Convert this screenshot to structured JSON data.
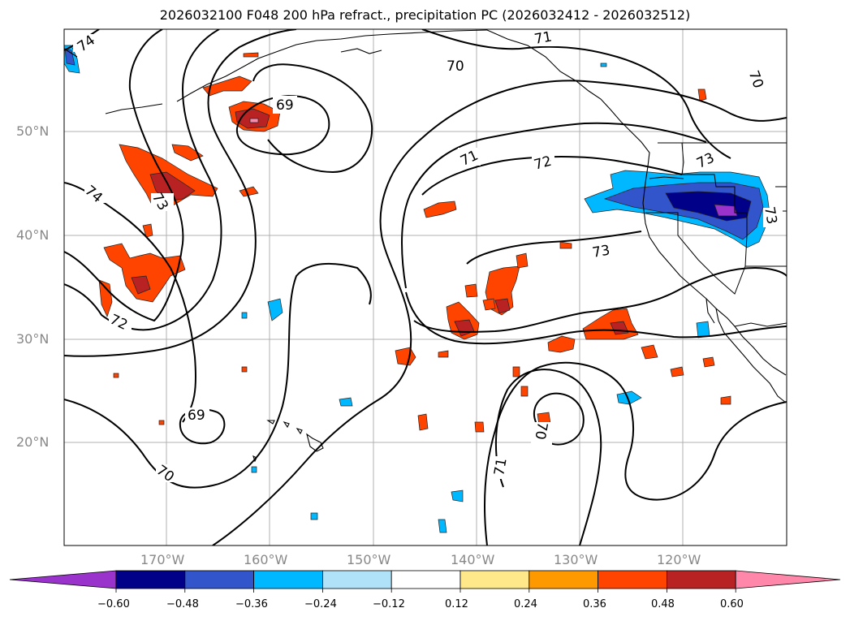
{
  "title": "2026032100 F048 200 hPa refract., precipitation PC (2026032412 - 2026032512)",
  "latitude_labels": [
    "50°N",
    "40°N",
    "30°N",
    "20°N"
  ],
  "longitude_labels": [
    "170°W",
    "160°W",
    "150°W",
    "140°W",
    "130°W",
    "120°W"
  ],
  "contour_labels": [
    "74",
    "74",
    "73",
    "72",
    "71",
    "70",
    "70",
    "69",
    "69",
    "71",
    "72",
    "73",
    "73",
    "71",
    "70",
    "70",
    "73"
  ],
  "colorbar": {
    "ticks": [
      "−0.60",
      "−0.48",
      "−0.36",
      "−0.24",
      "−0.12",
      "0.12",
      "0.24",
      "0.36",
      "0.48",
      "0.60"
    ],
    "colors": [
      "#9933cc",
      "#000088",
      "#3355cc",
      "#00b8ff",
      "#b0e2fa",
      "#ffffff",
      "#ffe88a",
      "#ff9900",
      "#ff4400",
      "#b82222",
      "#ff88aa"
    ]
  }
}
